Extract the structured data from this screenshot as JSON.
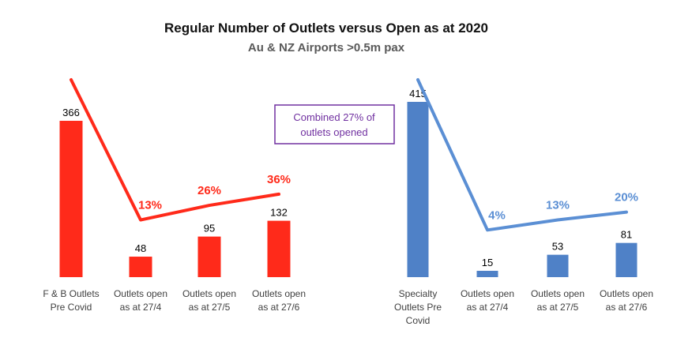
{
  "title": "Regular Number of Outlets versus Open as at 2020",
  "subtitle": "Au & NZ Airports >0.5m pax",
  "callout": {
    "line1": "Combined 27% of",
    "line2": "outlets opened",
    "color": "#7030a0"
  },
  "chart_data": [
    {
      "type": "bar",
      "categories": [
        [
          "F & B Outlets",
          "Pre Covid"
        ],
        [
          "Outlets open",
          "as at 27/4"
        ],
        [
          "Outlets open",
          "as at 27/5"
        ],
        [
          "Outlets open",
          "as at 27/6"
        ]
      ],
      "values": [
        366,
        48,
        95,
        132
      ],
      "value_labels": [
        "366",
        "48",
        "95",
        "132"
      ],
      "line_series": {
        "values_pct": [
          100,
          13,
          26,
          36
        ],
        "labels": [
          "",
          "13%",
          "26%",
          "36%"
        ]
      },
      "bar_color": "#ff2a1a",
      "line_color": "#ff2a1a"
    },
    {
      "type": "bar",
      "categories": [
        [
          "Specialty",
          "Outlets Pre",
          "Covid"
        ],
        [
          "Outlets open",
          "as at 27/4"
        ],
        [
          "Outlets open",
          "as at 27/5"
        ],
        [
          "Outlets open",
          "as at 27/6"
        ]
      ],
      "values": [
        415,
        15,
        53,
        81
      ],
      "value_labels": [
        "415",
        "15",
        "53",
        "81"
      ],
      "line_series": {
        "values_pct": [
          100,
          4,
          13,
          20
        ],
        "labels": [
          "",
          "4%",
          "13%",
          "20%"
        ]
      },
      "bar_color": "#4f81c7",
      "line_color": "#5b8fd4"
    }
  ]
}
